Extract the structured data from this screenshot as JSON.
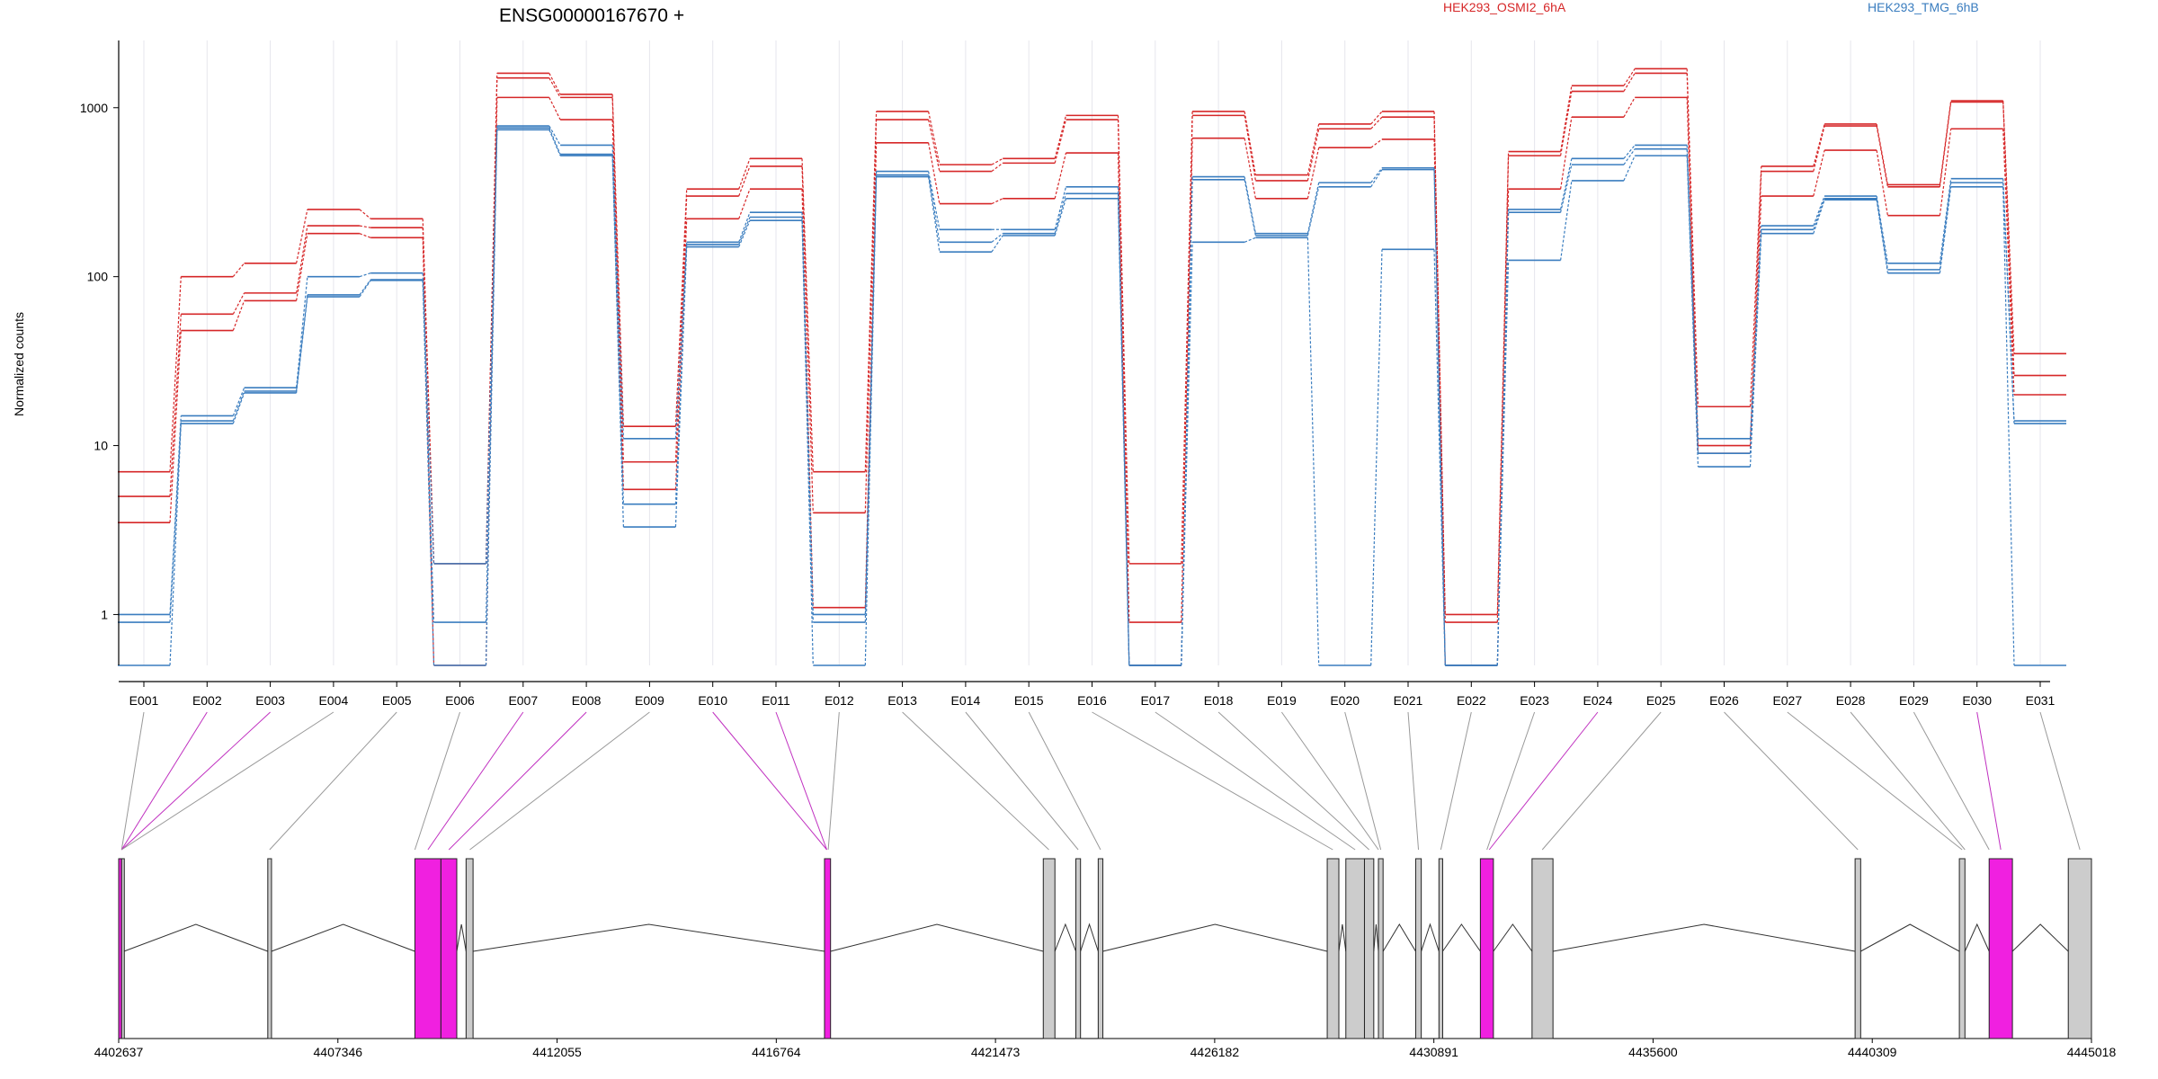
{
  "title": "ENSG00000167670 +",
  "ylabel": "Normalized counts",
  "legend": [
    {
      "name": "HEK293_OSMI2_6hA",
      "color": "#d62728"
    },
    {
      "name": "HEK293_TMG_6hB",
      "color": "#3a7dbf"
    }
  ],
  "colors": {
    "red": "#d62728",
    "blue": "#3a7dbf",
    "exon_gray": "#cccccc",
    "exon_magenta": "#f020e0",
    "connector_gray": "#999999",
    "connector_magenta": "#c030c0"
  },
  "chart_data": {
    "type": "line",
    "title": "ENSG00000167670 +",
    "xlabel": "",
    "ylabel": "Normalized counts",
    "yscale": "log",
    "ylim": [
      0.5,
      2500
    ],
    "yticks": [
      1,
      10,
      100,
      1000
    ],
    "yticklabels": [
      "1",
      "10",
      "100",
      "1000"
    ],
    "categories": [
      "E001",
      "E002",
      "E003",
      "E004",
      "E005",
      "E006",
      "E007",
      "E008",
      "E009",
      "E010",
      "E011",
      "E012",
      "E013",
      "E014",
      "E015",
      "E016",
      "E017",
      "E018",
      "E019",
      "E020",
      "E021",
      "E022",
      "E023",
      "E024",
      "E025",
      "E026",
      "E027",
      "E028",
      "E029",
      "E030",
      "E031"
    ],
    "legend_position": "top",
    "grid": "vertical",
    "series": [
      {
        "name": "HEK293_OSMI2_6hA",
        "color": "red",
        "values": [
          7,
          100,
          120,
          250,
          220,
          2,
          1600,
          1200,
          13,
          330,
          500,
          7,
          950,
          460,
          500,
          900,
          2,
          950,
          400,
          800,
          950,
          1,
          550,
          1350,
          1700,
          17,
          450,
          800,
          350,
          1100,
          35
        ]
      },
      {
        "name": "HEK293_OSMI2_6hA",
        "color": "red",
        "values": [
          5,
          60,
          80,
          200,
          195,
          2,
          1500,
          1150,
          8,
          300,
          450,
          4,
          850,
          420,
          470,
          850,
          0.9,
          900,
          370,
          750,
          880,
          0.9,
          520,
          1250,
          1600,
          10,
          420,
          780,
          340,
          1080,
          26
        ]
      },
      {
        "name": "HEK293_OSMI2_6hA",
        "color": "red",
        "values": [
          3.5,
          48,
          72,
          180,
          170,
          0.5,
          1150,
          850,
          5.5,
          220,
          330,
          1.1,
          620,
          270,
          290,
          540,
          0.5,
          660,
          290,
          580,
          650,
          0.5,
          330,
          880,
          1150,
          9,
          300,
          560,
          230,
          750,
          20
        ]
      },
      {
        "name": "HEK293_TMG_6hB",
        "color": "blue",
        "values": [
          1,
          15,
          22,
          100,
          105,
          2,
          780,
          600,
          11,
          160,
          240,
          1,
          420,
          190,
          190,
          340,
          0.5,
          390,
          180,
          360,
          440,
          0.5,
          250,
          500,
          600,
          11,
          200,
          300,
          120,
          380,
          14
        ]
      },
      {
        "name": "HEK293_TMG_6hB",
        "color": "blue",
        "values": [
          0.9,
          14,
          21,
          78,
          96,
          0.9,
          760,
          530,
          4.5,
          155,
          225,
          0.9,
          400,
          160,
          180,
          310,
          0.5,
          375,
          175,
          340,
          430,
          0.5,
          240,
          460,
          570,
          9,
          190,
          290,
          110,
          360,
          13.5
        ]
      },
      {
        "name": "HEK293_TMG_6hB",
        "color": "blue",
        "values": [
          0.5,
          13.5,
          20.5,
          76,
          95,
          0.5,
          740,
          520,
          3.3,
          150,
          215,
          0.5,
          390,
          140,
          175,
          290,
          0.5,
          160,
          170,
          0.5,
          145,
          0.5,
          125,
          370,
          520,
          7.5,
          180,
          285,
          105,
          340,
          0.5
        ]
      }
    ]
  },
  "gene_model": {
    "coord_min": 4402637,
    "coord_max": 4445018,
    "tick_values": [
      4402637,
      4407346,
      4412055,
      4416764,
      4421473,
      4426182,
      4430891,
      4435600,
      4440309,
      4445018
    ],
    "tick_labels": [
      "4402637",
      "4407346",
      "4412055",
      "4416764",
      "4421473",
      "4426182",
      "4430891",
      "4435600",
      "4440309",
      "4445018"
    ],
    "exons": [
      {
        "start": 4402637,
        "end": 4402700,
        "color": "magenta"
      },
      {
        "start": 4402700,
        "end": 4402750,
        "color": "gray"
      },
      {
        "start": 4405840,
        "end": 4405920,
        "color": "gray"
      },
      {
        "start": 4409000,
        "end": 4409560,
        "color": "magenta"
      },
      {
        "start": 4409560,
        "end": 4409900,
        "color": "magenta"
      },
      {
        "start": 4410100,
        "end": 4410250,
        "color": "gray"
      },
      {
        "start": 4417800,
        "end": 4417930,
        "color": "magenta"
      },
      {
        "start": 4422500,
        "end": 4422750,
        "color": "gray"
      },
      {
        "start": 4423200,
        "end": 4423300,
        "color": "gray"
      },
      {
        "start": 4423680,
        "end": 4423780,
        "color": "gray"
      },
      {
        "start": 4428600,
        "end": 4428850,
        "color": "gray"
      },
      {
        "start": 4429000,
        "end": 4429400,
        "color": "gray"
      },
      {
        "start": 4429400,
        "end": 4429600,
        "color": "gray"
      },
      {
        "start": 4429700,
        "end": 4429800,
        "color": "gray"
      },
      {
        "start": 4430500,
        "end": 4430620,
        "color": "gray"
      },
      {
        "start": 4431000,
        "end": 4431080,
        "color": "gray"
      },
      {
        "start": 4431890,
        "end": 4432170,
        "color": "magenta"
      },
      {
        "start": 4433000,
        "end": 4433450,
        "color": "gray"
      },
      {
        "start": 4439940,
        "end": 4440060,
        "color": "gray"
      },
      {
        "start": 4442180,
        "end": 4442300,
        "color": "gray"
      },
      {
        "start": 4442820,
        "end": 4443320,
        "color": "magenta"
      },
      {
        "start": 4444520,
        "end": 4445018,
        "color": "gray"
      }
    ],
    "connectors": [
      {
        "exon": "E001",
        "pos": 4402700,
        "color": "gray"
      },
      {
        "exon": "E002",
        "pos": 4402700,
        "color": "magenta"
      },
      {
        "exon": "E003",
        "pos": 4402700,
        "color": "magenta"
      },
      {
        "exon": "E004",
        "pos": 4402700,
        "color": "gray"
      },
      {
        "exon": "E005",
        "pos": 4405880,
        "color": "gray"
      },
      {
        "exon": "E006",
        "pos": 4409000,
        "color": "gray"
      },
      {
        "exon": "E007",
        "pos": 4409280,
        "color": "magenta"
      },
      {
        "exon": "E008",
        "pos": 4409730,
        "color": "magenta"
      },
      {
        "exon": "E009",
        "pos": 4410180,
        "color": "gray"
      },
      {
        "exon": "E010",
        "pos": 4417850,
        "color": "magenta"
      },
      {
        "exon": "E011",
        "pos": 4417850,
        "color": "magenta"
      },
      {
        "exon": "E012",
        "pos": 4417880,
        "color": "gray"
      },
      {
        "exon": "E013",
        "pos": 4422620,
        "color": "gray"
      },
      {
        "exon": "E014",
        "pos": 4423250,
        "color": "gray"
      },
      {
        "exon": "E015",
        "pos": 4423730,
        "color": "gray"
      },
      {
        "exon": "E016",
        "pos": 4428720,
        "color": "gray"
      },
      {
        "exon": "E017",
        "pos": 4429200,
        "color": "gray"
      },
      {
        "exon": "E018",
        "pos": 4429500,
        "color": "gray"
      },
      {
        "exon": "E019",
        "pos": 4429700,
        "color": "gray"
      },
      {
        "exon": "E020",
        "pos": 4429750,
        "color": "gray"
      },
      {
        "exon": "E021",
        "pos": 4430560,
        "color": "gray"
      },
      {
        "exon": "E022",
        "pos": 4431040,
        "color": "gray"
      },
      {
        "exon": "E023",
        "pos": 4432030,
        "color": "gray"
      },
      {
        "exon": "E024",
        "pos": 4432080,
        "color": "magenta"
      },
      {
        "exon": "E025",
        "pos": 4433220,
        "color": "gray"
      },
      {
        "exon": "E026",
        "pos": 4440000,
        "color": "gray"
      },
      {
        "exon": "E027",
        "pos": 4442240,
        "color": "gray"
      },
      {
        "exon": "E028",
        "pos": 4442300,
        "color": "gray"
      },
      {
        "exon": "E029",
        "pos": 4442820,
        "color": "gray"
      },
      {
        "exon": "E030",
        "pos": 4443070,
        "color": "magenta"
      },
      {
        "exon": "E031",
        "pos": 4444770,
        "color": "gray"
      }
    ]
  }
}
